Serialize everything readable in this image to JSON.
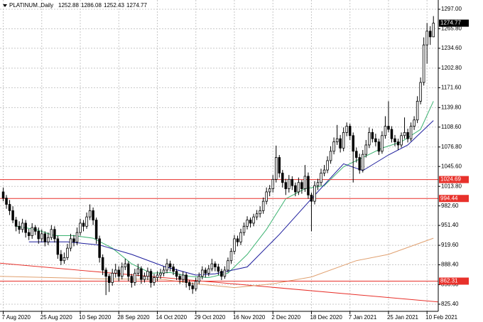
{
  "chart_data": {
    "type": "candlestick",
    "symbol": "PLATINUM.,Daily",
    "xlim": [
      -1,
      135.5
    ],
    "ylim": [
      814,
      1311.8
    ],
    "grid": true,
    "up_color": "#ffffff",
    "down_color": "#000000",
    "wick_color": "#000000",
    "xticks": [
      {
        "value": 0,
        "label": "7 Aug 2020"
      },
      {
        "value": 12,
        "label": "25 Aug 2020"
      },
      {
        "value": 24,
        "label": "10 Sep 2020"
      },
      {
        "value": 36,
        "label": "28 Sep 2020"
      },
      {
        "value": 48,
        "label": "14 Oct 2020"
      },
      {
        "value": 60,
        "label": "29 Oct 2020"
      },
      {
        "value": 72,
        "label": "16 Nov 2020"
      },
      {
        "value": 84,
        "label": "2 Dec 2020"
      },
      {
        "value": 96,
        "label": "18 Dec 2020"
      },
      {
        "value": 108,
        "label": "7 Jan 2021"
      },
      {
        "value": 120,
        "label": "25 Jan 2021"
      },
      {
        "value": 132,
        "label": "10 Feb 2021"
      }
    ],
    "yticks": [
      {
        "value": 1297,
        "label": "1297.00"
      },
      {
        "value": 1265.8,
        "label": "1265.80"
      },
      {
        "value": 1234.6,
        "label": "1234.60"
      },
      {
        "value": 1202.8,
        "label": "1202.80"
      },
      {
        "value": 1171.6,
        "label": "1171.60"
      },
      {
        "value": 1139.8,
        "label": "1139.80"
      },
      {
        "value": 1108.6,
        "label": "1108.60"
      },
      {
        "value": 1076.8,
        "label": "1076.80"
      },
      {
        "value": 1045.6,
        "label": "1045.60"
      },
      {
        "value": 1013.8,
        "label": "1013.80"
      },
      {
        "value": 982.6,
        "label": "982.60"
      },
      {
        "value": 951.4,
        "label": "951.40"
      },
      {
        "value": 919.6,
        "label": "919.60"
      },
      {
        "value": 888.4,
        "label": "888.40"
      },
      {
        "value": 856.6,
        "label": "856.60"
      },
      {
        "value": 825.4,
        "label": "825.40"
      }
    ],
    "levels": [
      {
        "value": 1024.69,
        "color": "#e8312b"
      },
      {
        "value": 994.44,
        "color": "#e8312b"
      },
      {
        "value": 862.31,
        "color": "#e8312b"
      }
    ],
    "trendline": {
      "color": "#e8312b",
      "x": [
        -1,
        135.5
      ],
      "values": [
        891,
        829
      ]
    },
    "lines": [
      {
        "color": "#3cb371",
        "x": [
          4,
          10,
          16,
          22,
          28,
          34,
          40,
          46,
          52,
          58,
          64,
          70,
          76,
          82,
          88,
          94,
          100,
          106,
          112,
          118,
          124,
          130,
          134
        ],
        "values": [
          950,
          945,
          935,
          935,
          931,
          915,
          890,
          875,
          876,
          870,
          868,
          875,
          905,
          945,
          994,
          1010,
          1015,
          1045,
          1060,
          1075,
          1085,
          1105,
          1150
        ]
      },
      {
        "color": "#1c1c9c",
        "x": [
          8,
          20,
          30,
          40,
          50,
          60,
          66,
          76,
          86,
          96,
          106,
          112,
          120,
          126,
          134
        ],
        "values": [
          925,
          925,
          920,
          905,
          886,
          872,
          874,
          885,
          937,
          994,
          1050,
          1039,
          1064,
          1080,
          1119
        ]
      },
      {
        "color": "#e0a070",
        "x": [
          -1,
          30,
          50,
          60,
          72,
          84,
          96,
          110,
          120,
          134
        ],
        "values": [
          870,
          866,
          865,
          858,
          852,
          858,
          869,
          895,
          905,
          931
        ]
      }
    ],
    "ohlc": [
      [
        1005,
        1012,
        990,
        995
      ],
      [
        995,
        1000,
        978,
        985
      ],
      [
        985,
        992,
        968,
        975
      ],
      [
        975,
        982,
        955,
        960
      ],
      [
        960,
        965,
        942,
        950
      ],
      [
        950,
        958,
        938,
        945
      ],
      [
        945,
        962,
        940,
        955
      ],
      [
        955,
        960,
        932,
        940
      ],
      [
        940,
        946,
        928,
        935
      ],
      [
        935,
        955,
        930,
        948
      ],
      [
        948,
        952,
        936,
        942
      ],
      [
        942,
        948,
        922,
        930
      ],
      [
        930,
        945,
        925,
        938
      ],
      [
        938,
        942,
        918,
        925
      ],
      [
        925,
        940,
        920,
        932
      ],
      [
        932,
        952,
        928,
        945
      ],
      [
        945,
        950,
        924,
        930
      ],
      [
        930,
        935,
        898,
        905
      ],
      [
        905,
        912,
        888,
        895
      ],
      [
        895,
        908,
        890,
        900
      ],
      [
        900,
        922,
        896,
        915
      ],
      [
        915,
        938,
        910,
        930
      ],
      [
        930,
        936,
        918,
        925
      ],
      [
        925,
        948,
        920,
        940
      ],
      [
        940,
        962,
        935,
        955
      ],
      [
        955,
        960,
        942,
        950
      ],
      [
        950,
        972,
        946,
        965
      ],
      [
        965,
        985,
        960,
        975
      ],
      [
        975,
        980,
        952,
        960
      ],
      [
        960,
        964,
        922,
        930
      ],
      [
        930,
        935,
        892,
        900
      ],
      [
        900,
        905,
        872,
        880
      ],
      [
        880,
        884,
        840,
        870
      ],
      [
        870,
        874,
        845,
        860
      ],
      [
        860,
        882,
        855,
        875
      ],
      [
        875,
        890,
        868,
        880
      ],
      [
        880,
        886,
        862,
        870
      ],
      [
        870,
        892,
        865,
        885
      ],
      [
        885,
        898,
        880,
        890
      ],
      [
        890,
        894,
        862,
        870
      ],
      [
        870,
        874,
        852,
        860
      ],
      [
        860,
        882,
        855,
        875
      ],
      [
        875,
        890,
        870,
        882
      ],
      [
        882,
        886,
        858,
        865
      ],
      [
        865,
        876,
        860,
        870
      ],
      [
        870,
        884,
        864,
        878
      ],
      [
        878,
        882,
        852,
        860
      ],
      [
        860,
        874,
        855,
        868
      ],
      [
        868,
        878,
        862,
        872
      ],
      [
        872,
        882,
        866,
        875
      ],
      [
        875,
        886,
        870,
        880
      ],
      [
        880,
        898,
        875,
        890
      ],
      [
        890,
        895,
        878,
        885
      ],
      [
        885,
        890,
        872,
        878
      ],
      [
        878,
        882,
        864,
        870
      ],
      [
        870,
        874,
        858,
        865
      ],
      [
        865,
        878,
        860,
        872
      ],
      [
        872,
        876,
        852,
        860
      ],
      [
        860,
        864,
        848,
        855
      ],
      [
        855,
        860,
        842,
        850
      ],
      [
        850,
        868,
        846,
        862
      ],
      [
        862,
        876,
        858,
        870
      ],
      [
        870,
        886,
        865,
        880
      ],
      [
        880,
        884,
        868,
        875
      ],
      [
        875,
        888,
        870,
        882
      ],
      [
        882,
        898,
        878,
        890
      ],
      [
        890,
        894,
        878,
        885
      ],
      [
        885,
        890,
        872,
        878
      ],
      [
        878,
        882,
        864,
        870
      ],
      [
        870,
        886,
        866,
        880
      ],
      [
        880,
        900,
        876,
        895
      ],
      [
        895,
        915,
        890,
        910
      ],
      [
        910,
        936,
        905,
        930
      ],
      [
        930,
        935,
        918,
        925
      ],
      [
        925,
        946,
        920,
        940
      ],
      [
        940,
        956,
        935,
        950
      ],
      [
        950,
        966,
        945,
        960
      ],
      [
        960,
        964,
        948,
        955
      ],
      [
        955,
        970,
        950,
        965
      ],
      [
        965,
        976,
        960,
        970
      ],
      [
        970,
        982,
        964,
        975
      ],
      [
        975,
        996,
        970,
        990
      ],
      [
        990,
        1012,
        985,
        1005
      ],
      [
        1005,
        1016,
        998,
        1010
      ],
      [
        1010,
        1032,
        1004,
        1025
      ],
      [
        1025,
        1079,
        1020,
        1060
      ],
      [
        1060,
        1064,
        1028,
        1035
      ],
      [
        1035,
        1040,
        1012,
        1020
      ],
      [
        1020,
        1026,
        1000,
        1010
      ],
      [
        1010,
        1032,
        1004,
        1025
      ],
      [
        1025,
        1030,
        1008,
        1015
      ],
      [
        1015,
        1020,
        998,
        1005
      ],
      [
        1005,
        1028,
        1000,
        1020
      ],
      [
        1020,
        1024,
        1002,
        1010
      ],
      [
        1010,
        1048,
        1005,
        1030
      ],
      [
        1030,
        1036,
        994,
        1000
      ],
      [
        1000,
        1004,
        942,
        990
      ],
      [
        990,
        1022,
        985,
        1015
      ],
      [
        1015,
        1026,
        1008,
        1020
      ],
      [
        1020,
        1042,
        1015,
        1035
      ],
      [
        1035,
        1048,
        1030,
        1040
      ],
      [
        1040,
        1062,
        1035,
        1055
      ],
      [
        1055,
        1078,
        1050,
        1070
      ],
      [
        1070,
        1092,
        1065,
        1085
      ],
      [
        1085,
        1112,
        1080,
        1090
      ],
      [
        1090,
        1096,
        1068,
        1075
      ],
      [
        1075,
        1108,
        1070,
        1100
      ],
      [
        1100,
        1116,
        1094,
        1110
      ],
      [
        1110,
        1114,
        1088,
        1095
      ],
      [
        1095,
        1100,
        1020,
        1070
      ],
      [
        1070,
        1076,
        1052,
        1060
      ],
      [
        1060,
        1066,
        1034,
        1040
      ],
      [
        1040,
        1072,
        1036,
        1065
      ],
      [
        1065,
        1088,
        1060,
        1080
      ],
      [
        1080,
        1108,
        1075,
        1100
      ],
      [
        1100,
        1106,
        1084,
        1090
      ],
      [
        1090,
        1098,
        1078,
        1085
      ],
      [
        1085,
        1090,
        1064,
        1070
      ],
      [
        1070,
        1102,
        1066,
        1095
      ],
      [
        1095,
        1126,
        1090,
        1110
      ],
      [
        1110,
        1150,
        1100,
        1105
      ],
      [
        1105,
        1110,
        1084,
        1090
      ],
      [
        1090,
        1096,
        1078,
        1085
      ],
      [
        1085,
        1090,
        1072,
        1080
      ],
      [
        1080,
        1100,
        1076,
        1095
      ],
      [
        1095,
        1124,
        1090,
        1100
      ],
      [
        1100,
        1106,
        1084,
        1090
      ],
      [
        1090,
        1116,
        1086,
        1110
      ],
      [
        1110,
        1126,
        1104,
        1120
      ],
      [
        1120,
        1158,
        1115,
        1150
      ],
      [
        1150,
        1188,
        1145,
        1180
      ],
      [
        1180,
        1252,
        1175,
        1240
      ],
      [
        1240,
        1275,
        1210,
        1262
      ],
      [
        1262,
        1270,
        1240,
        1252.88
      ],
      [
        1252.88,
        1286.08,
        1252.43,
        1274.77
      ]
    ]
  }
}
